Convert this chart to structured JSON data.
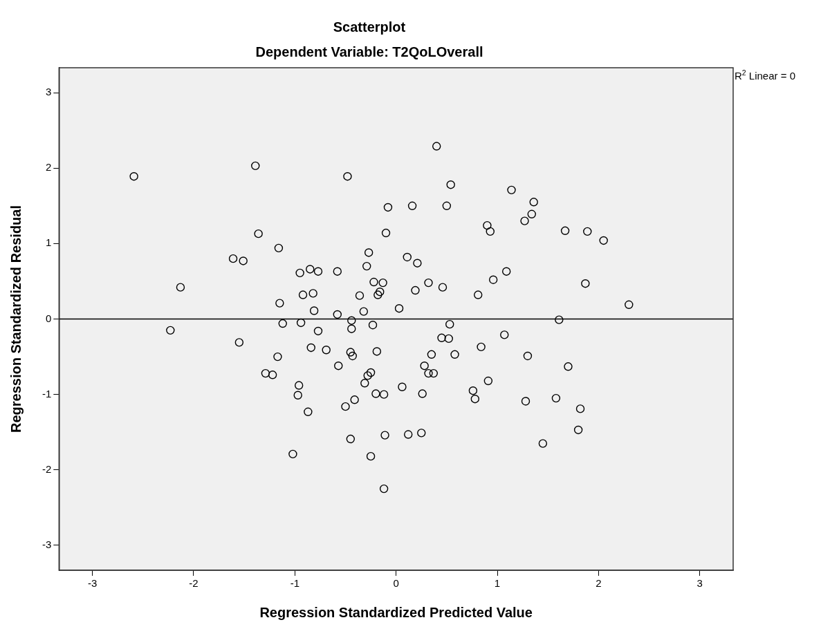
{
  "chart_data": {
    "type": "scatter",
    "title": "Scatterplot",
    "subtitle": "Dependent Variable: T2QoLOverall",
    "xlabel": "Regression Standardized Predicted Value",
    "ylabel": "Regression Standardized Residual",
    "xlim": [
      -3.33,
      3.33
    ],
    "ylim": [
      -3.33,
      3.33
    ],
    "xticks": [
      -3,
      -2,
      -1,
      0,
      1,
      2,
      3
    ],
    "yticks": [
      -3,
      -2,
      -1,
      0,
      1,
      2,
      3
    ],
    "grid": false,
    "legend": false,
    "annotations": [
      "R$^{2}$ Linear = 0"
    ],
    "series": [
      {
        "color": "#000000",
        "marker": "circle",
        "x": [
          -2.59,
          -1.39,
          -2.13,
          -1.36,
          -1.16,
          -1.61,
          -1.51,
          -0.95,
          -0.85,
          -0.92,
          -0.82,
          -1.15,
          -0.81,
          0.4,
          -0.48,
          0.54,
          1.14,
          1.36,
          1.34,
          1.27,
          -0.08,
          0.16,
          0.5,
          0.9,
          0.93,
          1.67,
          -0.1,
          -0.27,
          0.11,
          0.21,
          -0.29,
          -0.77,
          -0.58,
          1.09,
          0.96,
          -0.22,
          -0.13,
          0.32,
          0.46,
          -0.16,
          -0.18,
          0.19,
          -0.36,
          0.81,
          -0.58,
          -0.32,
          0.03,
          1.61,
          -0.44,
          -0.23,
          0.53,
          1.89,
          2.05,
          1.87,
          2.3,
          -2.23,
          -1.55,
          -1.12,
          -0.94,
          -0.77,
          -0.84,
          -1.17,
          -1.29,
          -1.22,
          -0.96,
          -0.97,
          -0.87,
          -1.02,
          -0.44,
          -0.69,
          -0.45,
          -0.43,
          -0.19,
          -0.57,
          -0.25,
          -0.28,
          -0.31,
          -0.2,
          -0.12,
          0.06,
          0.26,
          0.28,
          0.35,
          0.32,
          0.37,
          0.45,
          0.52,
          0.58,
          0.84,
          1.07,
          1.3,
          1.7,
          0.76,
          0.78,
          0.91,
          1.28,
          1.58,
          1.82,
          1.8,
          1.45,
          -0.41,
          -0.5,
          -0.45,
          -0.11,
          0.12,
          0.25,
          -0.25,
          -0.12
        ],
        "values": [
          1.89,
          2.03,
          0.42,
          1.13,
          0.94,
          0.8,
          0.77,
          0.61,
          0.66,
          0.32,
          0.34,
          0.21,
          0.11,
          2.29,
          1.89,
          1.78,
          1.71,
          1.55,
          1.39,
          1.3,
          1.48,
          1.5,
          1.5,
          1.24,
          1.16,
          1.17,
          1.14,
          0.88,
          0.82,
          0.74,
          0.7,
          0.63,
          0.63,
          0.63,
          0.52,
          0.49,
          0.48,
          0.48,
          0.42,
          0.36,
          0.32,
          0.38,
          0.31,
          0.32,
          0.06,
          0.1,
          0.14,
          -0.01,
          -0.02,
          -0.08,
          -0.07,
          1.16,
          1.04,
          0.47,
          0.19,
          -0.15,
          -0.31,
          -0.06,
          -0.05,
          -0.16,
          -0.38,
          -0.5,
          -0.72,
          -0.74,
          -0.88,
          -1.01,
          -1.23,
          -1.79,
          -0.13,
          -0.41,
          -0.44,
          -0.49,
          -0.43,
          -0.62,
          -0.71,
          -0.75,
          -0.85,
          -0.99,
          -1.0,
          -0.9,
          -0.99,
          -0.62,
          -0.47,
          -0.72,
          -0.72,
          -0.25,
          -0.26,
          -0.47,
          -0.37,
          -0.21,
          -0.49,
          -0.63,
          -0.95,
          -1.06,
          -0.82,
          -1.09,
          -1.05,
          -1.19,
          -1.47,
          -1.65,
          -1.07,
          -1.16,
          -1.59,
          -1.54,
          -1.53,
          -1.51,
          -1.82,
          -2.25
        ]
      },
      {
        "type": "line",
        "color": "#000000",
        "marker": "none",
        "x": [
          -3.33,
          3.33
        ],
        "values": [
          0,
          0
        ]
      }
    ]
  }
}
